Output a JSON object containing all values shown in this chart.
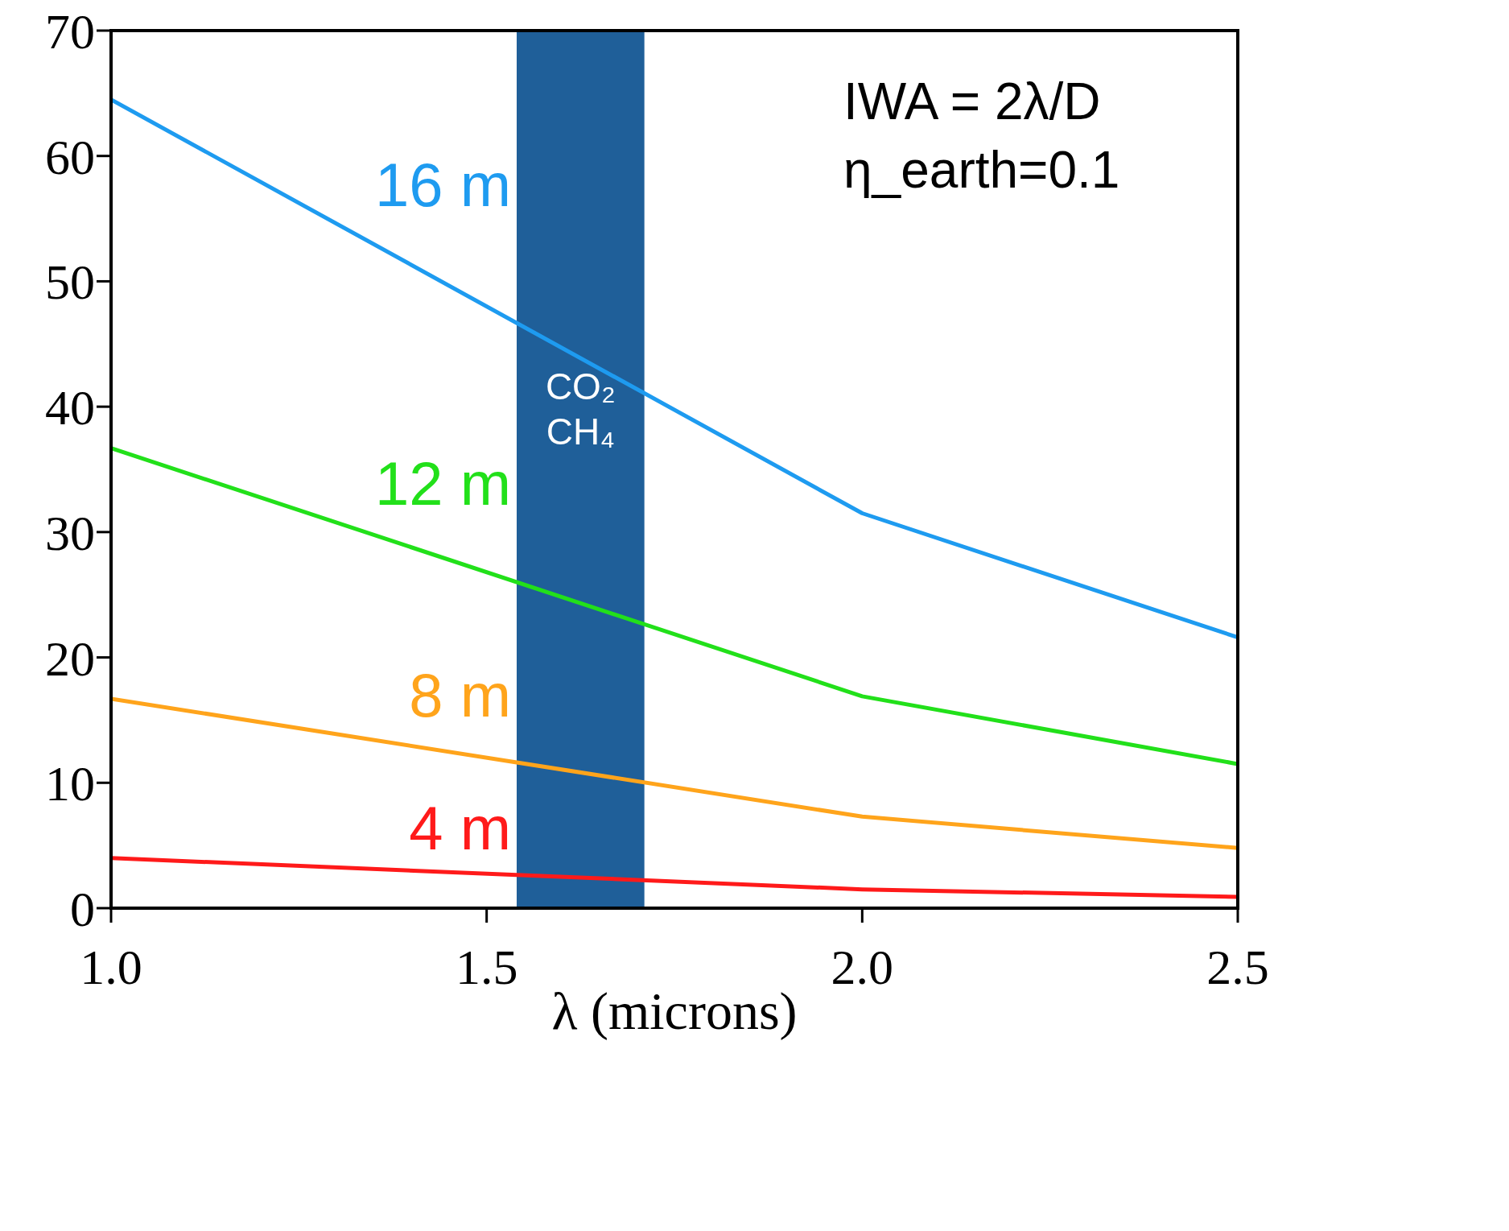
{
  "chart_data": {
    "type": "line",
    "xlabel": "λ (microns)",
    "x": [
      1.0,
      2.0,
      2.5
    ],
    "series": [
      {
        "name": "16 m",
        "color": "#1e9bf0",
        "values": [
          64.5,
          31.5,
          21.6
        ]
      },
      {
        "name": "12 m",
        "color": "#22e01a",
        "values": [
          36.7,
          16.9,
          11.5
        ]
      },
      {
        "name": "8 m",
        "color": "#ffa41b",
        "values": [
          16.7,
          7.3,
          4.8
        ]
      },
      {
        "name": "4 m",
        "color": "#ff1a1a",
        "values": [
          4.0,
          1.5,
          0.9
        ]
      }
    ],
    "xlim": [
      1.0,
      2.5
    ],
    "xticks": [
      {
        "value": 1.0,
        "label": "1.0"
      },
      {
        "value": 1.5,
        "label": "1.5"
      },
      {
        "value": 2.0,
        "label": "2.0"
      },
      {
        "value": 2.5,
        "label": "2.5"
      }
    ],
    "ylim": [
      0,
      70
    ],
    "yticks": [
      0,
      10,
      20,
      30,
      40,
      50,
      60,
      70
    ],
    "bands": [
      {
        "axis": "x",
        "from": 1.54,
        "to": 1.71,
        "label": "CO₂ CH₄",
        "color": "#1f5f99"
      }
    ],
    "annotations": [
      "IWA = 2λ/D",
      "η_earth=0.1"
    ],
    "marker": "none",
    "line_style": "solid"
  }
}
